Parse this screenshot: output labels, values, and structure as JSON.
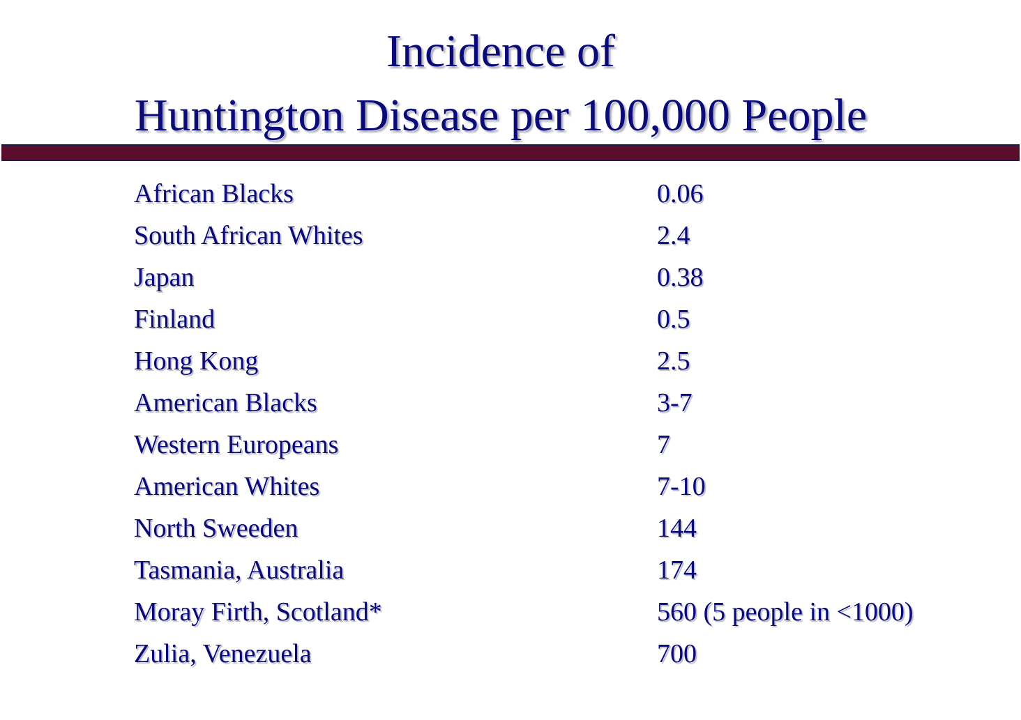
{
  "slide": {
    "title_line1": "Incidence of",
    "title_line2": "Huntington Disease per 100,000 People"
  },
  "colors": {
    "text": "#0a0a78",
    "divider": "#5a0c2c"
  },
  "table": {
    "rows": [
      {
        "region": "African Blacks",
        "rate": "0.06"
      },
      {
        "region": "South African Whites",
        "rate": "2.4"
      },
      {
        "region": "Japan",
        "rate": "0.38"
      },
      {
        "region": "Finland",
        "rate": "0.5"
      },
      {
        "region": "Hong Kong",
        "rate": "2.5"
      },
      {
        "region": "American Blacks",
        "rate": "3-7"
      },
      {
        "region": "Western Europeans",
        "rate": "7"
      },
      {
        "region": "American Whites",
        "rate": "7-10"
      },
      {
        "region": "North Sweeden",
        "rate": "144"
      },
      {
        "region": "Tasmania, Australia",
        "rate": "174"
      },
      {
        "region": "Moray Firth, Scotland*",
        "rate": "560 (5 people in <1000)"
      },
      {
        "region": "Zulia, Venezuela",
        "rate": "700"
      }
    ]
  }
}
